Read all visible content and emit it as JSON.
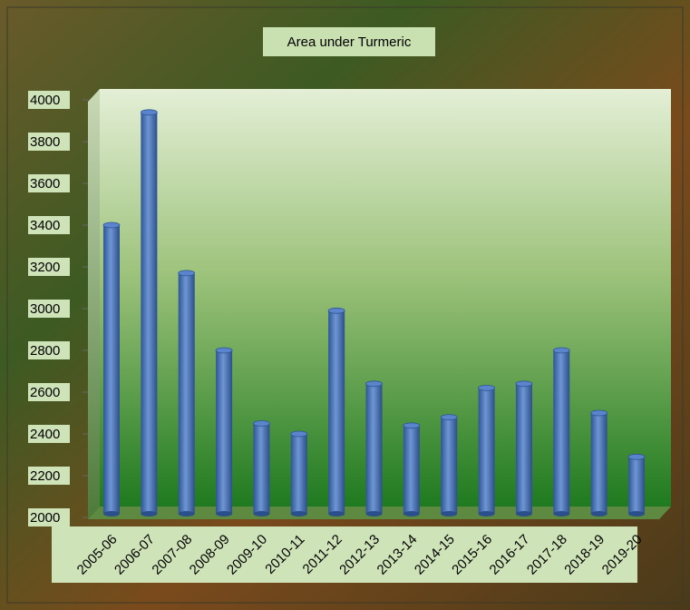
{
  "chart_data": {
    "type": "bar",
    "title": "Area under Turmeric",
    "categories": [
      "2005-06",
      "2006-07",
      "2007-08",
      "2008-09",
      "2009-10",
      "2010-11",
      "2011-12",
      "2012-13",
      "2013-14",
      "2014-15",
      "2015-16",
      "2016-17",
      "2017-18",
      "2018-19",
      "2019-20"
    ],
    "values": [
      3400,
      3940,
      3170,
      2800,
      2450,
      2400,
      2990,
      2640,
      2440,
      2480,
      2620,
      2640,
      2800,
      2500,
      2290
    ],
    "color": "#4f7ac0",
    "ylim": [
      2000,
      4000
    ],
    "yticks": [
      2000,
      2200,
      2400,
      2600,
      2800,
      3000,
      3200,
      3400,
      3600,
      3800,
      4000
    ]
  }
}
